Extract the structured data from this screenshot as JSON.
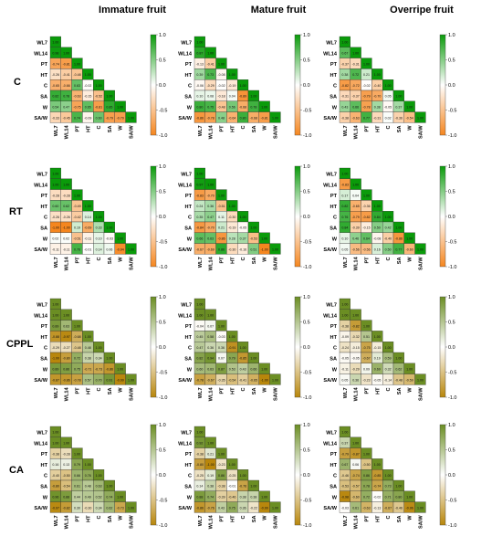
{
  "colors": {
    "green_scale": [
      "#e6f7e6",
      "#0a9b0a"
    ],
    "orange_scale": [
      "#fde7cf",
      "#f5861f"
    ],
    "olive_scale": [
      "#f0f3d8",
      "#6b8e23"
    ],
    "pink_scale": [
      "#fde4f1",
      "#b8860b"
    ]
  },
  "chart_data": {
    "type": "heatmap",
    "column_titles": [
      "Immature fruit",
      "Mature fruit",
      "Overripe fruit"
    ],
    "row_titles": [
      "C",
      "RT",
      "CPPL",
      "CA"
    ],
    "variables": [
      "WL7",
      "WL14",
      "PT",
      "HT",
      "C",
      "SA",
      "W",
      "SA/W"
    ],
    "colorbar_ticks": [
      "1.0",
      "0.5",
      "0.0",
      "-0.5",
      "-1.0"
    ],
    "panels": [
      {
        "row": "C",
        "col": "Immature fruit",
        "palette": "green_orange",
        "lower": [
          [
            0.98
          ],
          [
            -0.74,
            -0.81
          ],
          [
            -0.26,
            -0.41,
            -0.48
          ],
          [
            -0.65,
            -0.66,
            0.63,
            -0.02
          ],
          [
            0.82,
            0.78,
            -0.63,
            -0.15,
            -0.52
          ],
          [
            0.54,
            0.47,
            -0.75,
            0.65,
            -0.81,
            0.85
          ],
          [
            -0.33,
            -0.45,
            0.74,
            -0.09,
            0.6,
            -0.79,
            -0.79
          ]
        ]
      },
      {
        "row": "C",
        "col": "Mature fruit",
        "palette": "green_orange",
        "lower": [
          [
            0.87
          ],
          [
            -0.13,
            -0.41
          ],
          [
            0.39,
            0.73,
            -0.08
          ],
          [
            -0.06,
            -0.29,
            -0.02,
            -0.19
          ],
          [
            0.1,
            0.08,
            -0.18,
            0.04,
            -0.89
          ],
          [
            0.8,
            0.75,
            -0.48,
            0.56,
            -0.68,
            0.78
          ],
          [
            -0.86,
            -0.78,
            0.48,
            -0.64,
            0.8,
            -0.68,
            -0.81
          ]
        ]
      },
      {
        "row": "C",
        "col": "Overripe fruit",
        "palette": "green_orange",
        "lower": [
          [
            0.67
          ],
          [
            -0.37,
            -0.31
          ],
          [
            0.38,
            0.72,
            0.21
          ],
          [
            -0.82,
            -0.72,
            -0.02,
            -0.4
          ],
          [
            -0.31,
            -0.37,
            -0.79,
            -0.7,
            0.05
          ],
          [
            0.43,
            0.66,
            -0.78,
            0.38,
            -0.05,
            0.37
          ],
          [
            -0.38,
            -0.63,
            0.77,
            -0.31,
            0.02,
            -0.36,
            -0.54
          ]
        ]
      },
      {
        "row": "RT",
        "col": "Immature fruit",
        "palette": "green_orange",
        "lower": [
          [
            1.0
          ],
          [
            -0.28,
            -0.28
          ],
          [
            0.6,
            0.62,
            -0.49
          ],
          [
            -0.26,
            -0.26,
            -0.42,
            0.14
          ],
          [
            -1.0,
            -1.0,
            0.19,
            -0.69,
            0.33
          ],
          [
            0.02,
            0.02,
            -0.51,
            -0.11,
            0.1,
            -0.03
          ],
          [
            -0.11,
            -0.11,
            0.76,
            -0.01,
            0.14,
            0.06,
            -0.94
          ]
        ]
      },
      {
        "row": "RT",
        "col": "Mature fruit",
        "palette": "green_orange",
        "lower": [
          [
            0.97
          ],
          [
            -0.83,
            -0.7
          ],
          [
            0.24,
            0.36,
            -0.51
          ],
          [
            0.35,
            0.47,
            0.11,
            -0.3
          ],
          [
            -0.84,
            -0.7,
            0.21,
            -0.19,
            -0.05
          ],
          [
            0.66,
            0.63,
            -0.86,
            0.28,
            0.37,
            -0.53
          ],
          [
            -0.67,
            -0.69,
            0.86,
            -0.3,
            -0.16,
            0.51,
            -1.0
          ]
        ]
      },
      {
        "row": "RT",
        "col": "Overripe fruit",
        "palette": "green_orange",
        "lower": [
          [
            -0.83
          ],
          [
            0.17,
            0.04
          ],
          [
            0.82,
            -0.65,
            -0.36
          ],
          [
            0.76,
            -0.79,
            -0.82,
            0.84
          ],
          [
            0.84,
            -0.39,
            -0.15,
            0.5,
            0.42
          ],
          [
            0.1,
            0.46,
            0.64,
            -0.08,
            -0.4,
            -0.86
          ],
          [
            0.05,
            -0.56,
            -0.56,
            0.16,
            0.5,
            0.77,
            -0.6
          ]
        ]
      },
      {
        "row": "CPPL",
        "col": "Immature fruit",
        "palette": "olive_pink",
        "lower": [
          [
            1.0
          ],
          [
            0.89,
            0.63
          ],
          [
            -0.88,
            -0.97,
            -0.68
          ],
          [
            -0.29,
            -0.27,
            -0.48,
            0.48
          ],
          [
            -1.0,
            -0.8,
            0.72,
            0.38,
            0.34
          ],
          [
            0.89,
            0.86,
            0.75,
            -0.71,
            -0.73,
            -0.86
          ],
          [
            -0.87,
            -0.86,
            -0.78,
            0.57,
            0.7,
            0.91,
            -0.99
          ]
        ]
      },
      {
        "row": "CPPL",
        "col": "Mature fruit",
        "palette": "olive_pink",
        "lower": [
          [
            1.0
          ],
          [
            -0.04,
            0.07
          ],
          [
            0.45,
            0.58,
            -0.03
          ],
          [
            0.47,
            0.36,
            0.36,
            -0.91
          ],
          [
            0.82,
            0.94,
            0.07,
            0.79,
            -0.85
          ],
          [
            0.6,
            0.63,
            0.87,
            0.53,
            0.43,
            0.66
          ],
          [
            -0.78,
            -0.67,
            -0.35,
            -0.54,
            -0.41,
            -0.65,
            -1.0
          ]
        ]
      },
      {
        "row": "CPPL",
        "col": "Overripe fruit",
        "palette": "olive_pink",
        "lower": [
          [
            1.0
          ],
          [
            -0.38,
            -0.82
          ],
          [
            -0.09,
            -0.32,
            0.51
          ],
          [
            -0.24,
            -0.15,
            -0.75,
            -0.15
          ],
          [
            -0.05,
            -0.05,
            -0.67,
            0.19,
            0.59
          ],
          [
            -0.11,
            -0.29,
            0.09,
            0.69,
            0.32,
            0.62
          ],
          [
            0.05,
            0.36,
            -0.23,
            -0.05,
            -0.14,
            -0.48,
            -0.59
          ]
        ]
      },
      {
        "row": "CA",
        "col": "Immature fruit",
        "palette": "olive_pink",
        "lower": [
          [
            1.0
          ],
          [
            -0.38,
            -0.28
          ],
          [
            0.16,
            0.13,
            0.79
          ],
          [
            -0.4,
            -0.5,
            0.66,
            0.76
          ],
          [
            -0.8,
            -0.54,
            0.61,
            0.48,
            0.63
          ],
          [
            0.96,
            0.88,
            0.44,
            0.49,
            0.52,
            0.74
          ],
          [
            -0.97,
            -0.82,
            0.3,
            -0.3,
            0.34,
            0.62,
            -0.73
          ]
        ]
      },
      {
        "row": "CA",
        "col": "Mature fruit",
        "palette": "olive_pink",
        "lower": [
          [
            0.92
          ],
          [
            -0.38,
            0.21
          ],
          [
            -0.8,
            -1.0,
            -0.23
          ],
          [
            -0.25,
            0.19,
            0.86,
            -0.25
          ],
          [
            0.14,
            0.38,
            -0.38,
            -0.01,
            -0.76
          ],
          [
            0.88,
            0.74,
            -0.39,
            -0.46,
            0.38,
            0.38
          ],
          [
            -0.86,
            -0.76,
            0.43,
            0.75,
            0.36,
            -0.22,
            -0.99
          ]
        ]
      },
      {
        "row": "CA",
        "col": "Overripe fruit",
        "palette": "olive_pink",
        "lower": [
          [
            0.37
          ],
          [
            -0.79,
            -0.87
          ],
          [
            0.67,
            0.06,
            -0.5
          ],
          [
            -0.46,
            -0.74,
            0.86,
            -0.85
          ],
          [
            -0.53,
            -0.57,
            0.78,
            -0.74,
            0.73
          ],
          [
            -0.98,
            -0.6,
            0.72,
            -0.02,
            0.71,
            0.8
          ],
          [
            -0.03,
            0.61,
            -0.63,
            -0.13,
            -0.67,
            -0.46,
            -0.96
          ]
        ]
      }
    ]
  }
}
